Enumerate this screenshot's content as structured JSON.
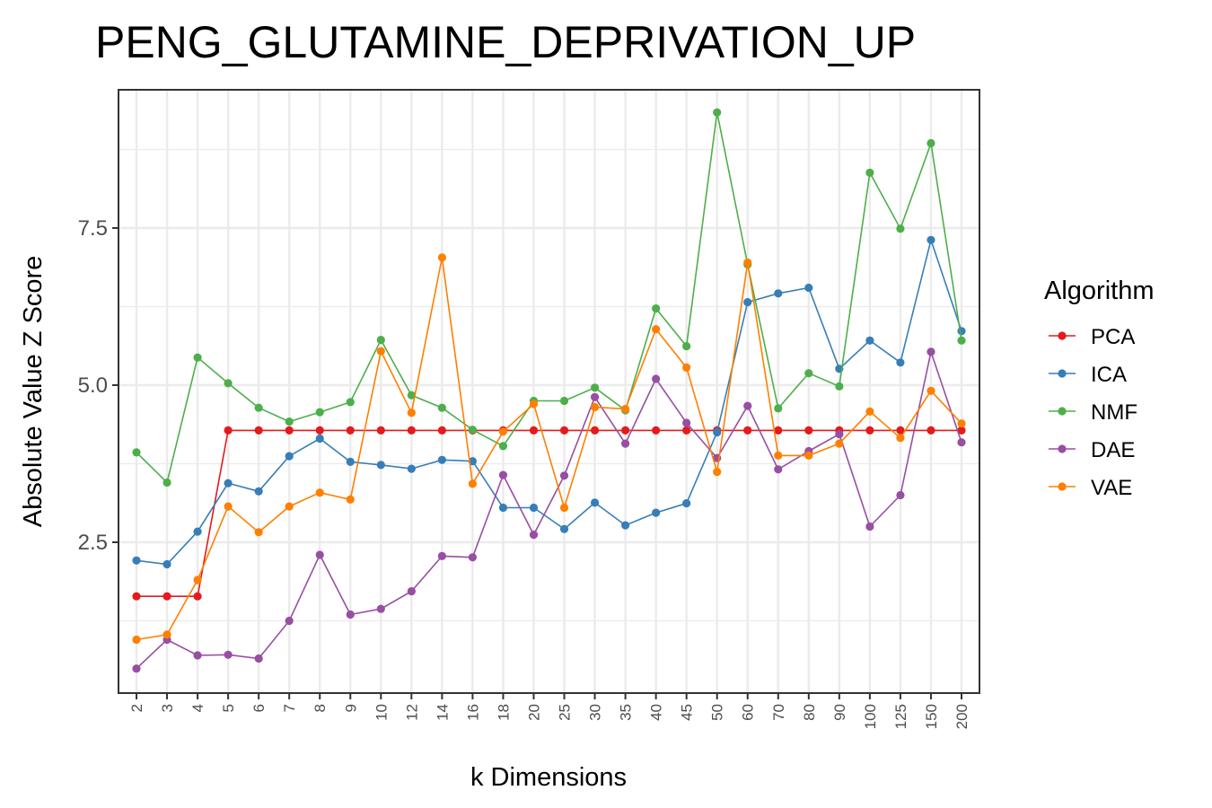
{
  "chart_data": {
    "type": "line",
    "title": "PENG_GLUTAMINE_DEPRIVATION_UP",
    "xlabel": "k Dimensions",
    "ylabel": "Absolute Value Z Score",
    "categories": [
      "2",
      "3",
      "4",
      "5",
      "6",
      "7",
      "8",
      "9",
      "10",
      "12",
      "14",
      "16",
      "18",
      "20",
      "25",
      "30",
      "35",
      "40",
      "45",
      "50",
      "60",
      "70",
      "80",
      "90",
      "100",
      "125",
      "150",
      "200"
    ],
    "yticks": [
      2.5,
      5.0,
      7.5
    ],
    "ytick_labels": [
      "2.5",
      "5.0",
      "7.5"
    ],
    "ylim": [
      0.1,
      9.7
    ],
    "grid": true,
    "legend_title": "Algorithm",
    "legend_position": "right",
    "series": [
      {
        "name": "PCA",
        "color": "#e41a1c",
        "values": [
          1.64,
          1.64,
          1.64,
          4.28,
          4.28,
          4.28,
          4.28,
          4.28,
          4.28,
          4.28,
          4.28,
          4.28,
          4.28,
          4.28,
          4.28,
          4.28,
          4.28,
          4.28,
          4.28,
          4.28,
          4.28,
          4.28,
          4.28,
          4.28,
          4.28,
          4.28,
          4.28,
          4.28
        ]
      },
      {
        "name": "ICA",
        "color": "#377eb8",
        "values": [
          2.21,
          2.15,
          2.67,
          3.44,
          3.31,
          3.87,
          4.15,
          3.78,
          3.73,
          3.67,
          3.81,
          3.79,
          3.05,
          3.05,
          2.71,
          3.13,
          2.77,
          2.97,
          3.12,
          4.25,
          6.32,
          6.46,
          6.55,
          5.26,
          5.71,
          5.36,
          7.31,
          5.86
        ]
      },
      {
        "name": "NMF",
        "color": "#4daf4a",
        "values": [
          3.93,
          3.45,
          5.44,
          5.03,
          4.64,
          4.42,
          4.57,
          4.73,
          5.72,
          4.84,
          4.64,
          4.29,
          4.03,
          4.75,
          4.75,
          4.96,
          4.6,
          6.22,
          5.62,
          9.34,
          6.92,
          4.63,
          5.19,
          4.98,
          8.38,
          7.49,
          8.85,
          5.71
        ]
      },
      {
        "name": "DAE",
        "color": "#984ea3",
        "values": [
          0.49,
          0.95,
          0.7,
          0.71,
          0.65,
          1.25,
          2.3,
          1.35,
          1.44,
          1.72,
          2.28,
          2.26,
          3.57,
          2.62,
          3.56,
          4.81,
          4.07,
          5.1,
          4.4,
          3.84,
          4.67,
          3.66,
          3.95,
          4.22,
          2.75,
          3.25,
          5.53,
          4.09
        ]
      },
      {
        "name": "VAE",
        "color": "#ff7f00",
        "values": [
          0.95,
          1.03,
          1.9,
          3.07,
          2.66,
          3.07,
          3.29,
          3.18,
          5.54,
          4.56,
          7.03,
          3.43,
          4.26,
          4.7,
          3.05,
          4.65,
          4.62,
          5.89,
          5.28,
          3.62,
          6.95,
          3.88,
          3.88,
          4.07,
          4.58,
          4.16,
          4.91,
          4.39
        ]
      }
    ]
  }
}
